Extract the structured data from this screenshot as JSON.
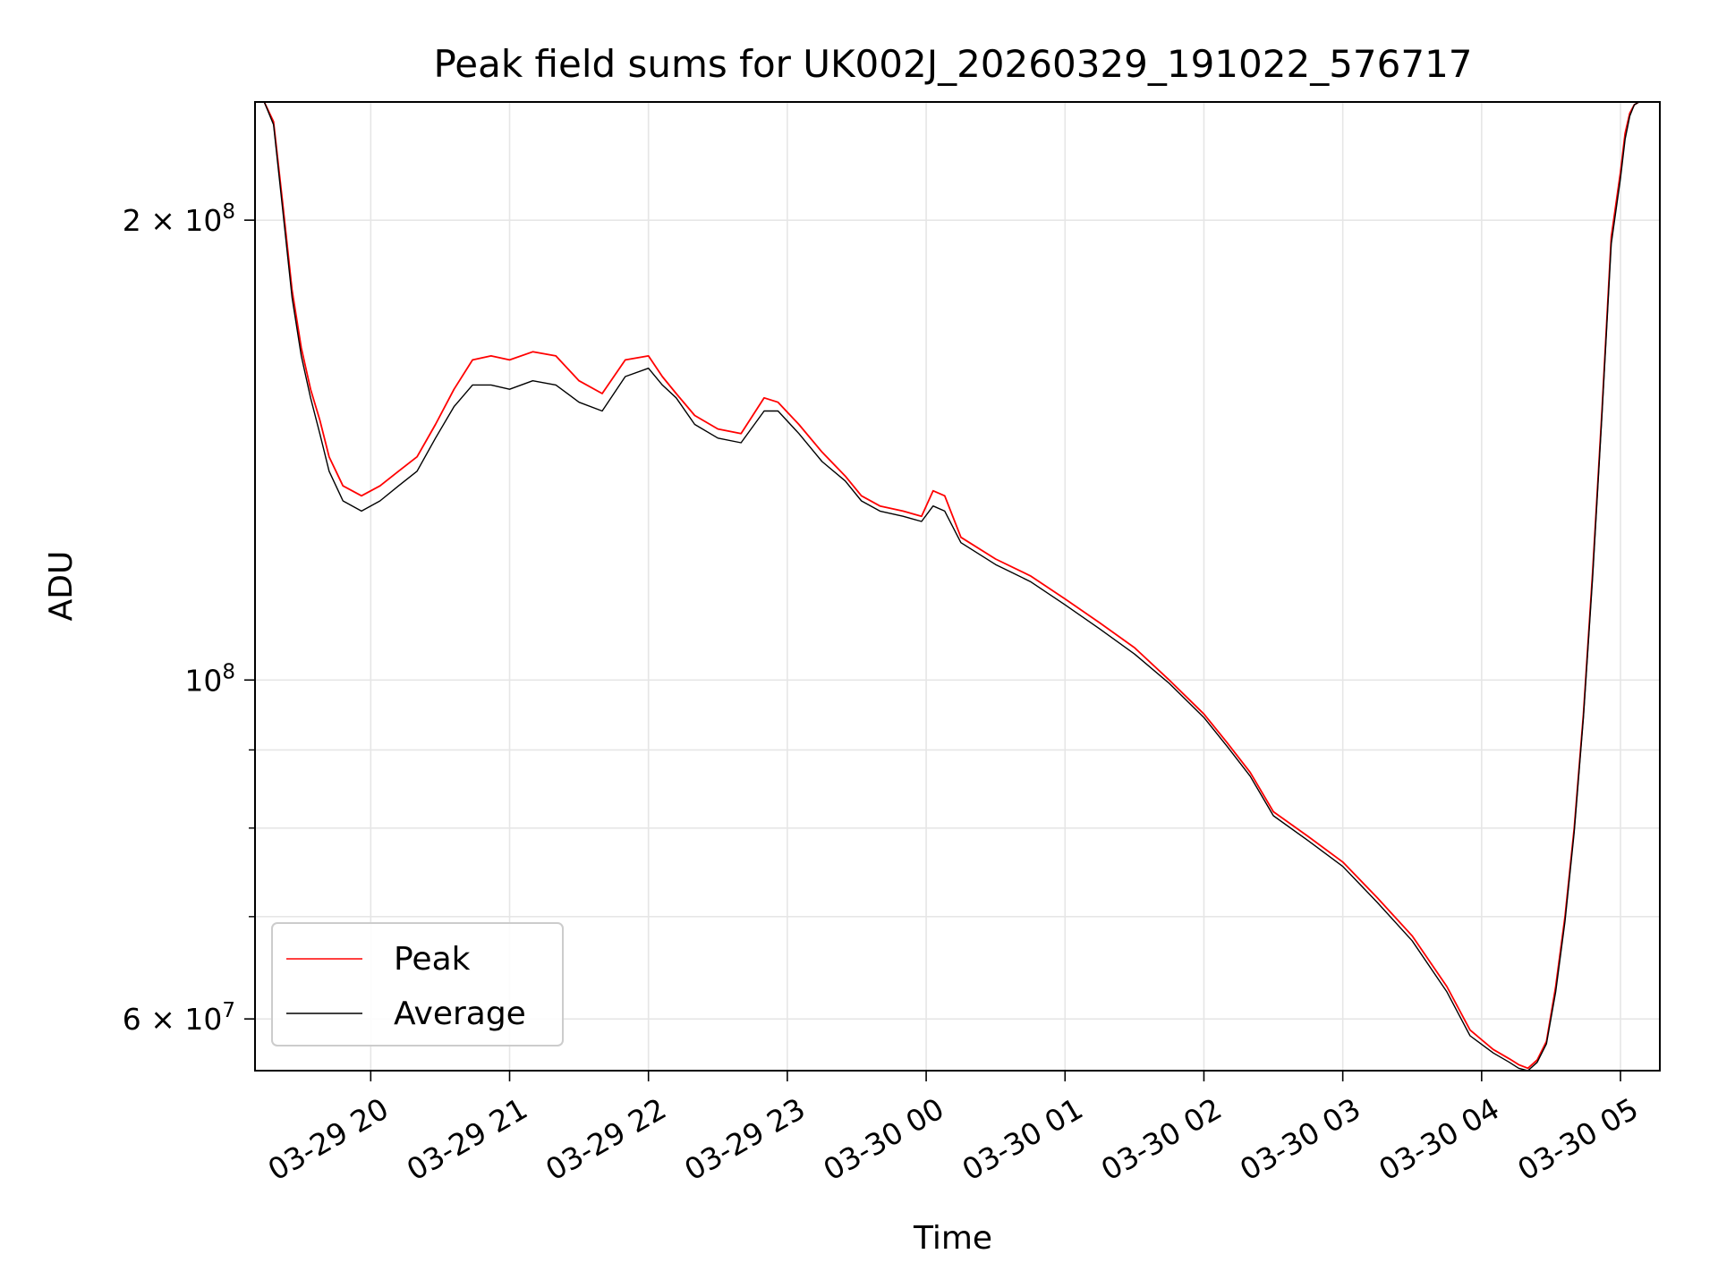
{
  "chart_data": {
    "type": "line",
    "title": "Peak field sums for UK002J_20260329_191022_576717",
    "xlabel": "Time",
    "ylabel": "ADU",
    "yscale": "log",
    "grid": true,
    "legend_position": "lower-left",
    "xlim": [
      "2026-03-29 19:10",
      "2026-03-30 05:17"
    ],
    "ylim": [
      55500000,
      239000000
    ],
    "x_ticks": [
      {
        "value": "2026-03-29 20:00",
        "label": "03-29 20"
      },
      {
        "value": "2026-03-29 21:00",
        "label": "03-29 21"
      },
      {
        "value": "2026-03-29 22:00",
        "label": "03-29 22"
      },
      {
        "value": "2026-03-29 23:00",
        "label": "03-29 23"
      },
      {
        "value": "2026-03-30 00:00",
        "label": "03-30 00"
      },
      {
        "value": "2026-03-30 01:00",
        "label": "03-30 01"
      },
      {
        "value": "2026-03-30 02:00",
        "label": "03-30 02"
      },
      {
        "value": "2026-03-30 03:00",
        "label": "03-30 03"
      },
      {
        "value": "2026-03-30 04:00",
        "label": "03-30 04"
      },
      {
        "value": "2026-03-30 05:00",
        "label": "03-30 05"
      }
    ],
    "y_major_ticks": [
      {
        "value": 60000000,
        "base": "6 × 10",
        "exp": "7"
      },
      {
        "value": 100000000,
        "base": "10",
        "exp": "8"
      },
      {
        "value": 200000000,
        "base": "2 × 10",
        "exp": "8"
      }
    ],
    "y_minor_ticks": [
      70000000,
      80000000,
      90000000
    ],
    "series": [
      {
        "name": "Peak",
        "color": "#ff0000",
        "x": [
          "2026-03-29 19:10",
          "2026-03-29 19:14",
          "2026-03-29 19:18",
          "2026-03-29 19:22",
          "2026-03-29 19:26",
          "2026-03-29 19:30",
          "2026-03-29 19:34",
          "2026-03-29 19:38",
          "2026-03-29 19:42",
          "2026-03-29 19:48",
          "2026-03-29 19:56",
          "2026-03-29 20:04",
          "2026-03-29 20:12",
          "2026-03-29 20:20",
          "2026-03-29 20:28",
          "2026-03-29 20:36",
          "2026-03-29 20:44",
          "2026-03-29 20:52",
          "2026-03-29 21:00",
          "2026-03-29 21:10",
          "2026-03-29 21:20",
          "2026-03-29 21:30",
          "2026-03-29 21:40",
          "2026-03-29 21:50",
          "2026-03-29 22:00",
          "2026-03-29 22:06",
          "2026-03-29 22:12",
          "2026-03-29 22:20",
          "2026-03-29 22:30",
          "2026-03-29 22:40",
          "2026-03-29 22:50",
          "2026-03-29 22:56",
          "2026-03-29 23:05",
          "2026-03-29 23:15",
          "2026-03-29 23:25",
          "2026-03-29 23:32",
          "2026-03-29 23:40",
          "2026-03-29 23:50",
          "2026-03-29 23:58",
          "2026-03-30 00:03",
          "2026-03-30 00:08",
          "2026-03-30 00:15",
          "2026-03-30 00:30",
          "2026-03-30 00:45",
          "2026-03-30 01:00",
          "2026-03-30 01:15",
          "2026-03-30 01:30",
          "2026-03-30 01:45",
          "2026-03-30 02:00",
          "2026-03-30 02:10",
          "2026-03-30 02:20",
          "2026-03-30 02:30",
          "2026-03-30 02:45",
          "2026-03-30 03:00",
          "2026-03-30 03:15",
          "2026-03-30 03:30",
          "2026-03-30 03:45",
          "2026-03-30 03:55",
          "2026-03-30 04:05",
          "2026-03-30 04:12",
          "2026-03-30 04:16",
          "2026-03-30 04:20",
          "2026-03-30 04:24",
          "2026-03-30 04:28",
          "2026-03-30 04:32",
          "2026-03-30 04:36",
          "2026-03-30 04:40",
          "2026-03-30 04:44",
          "2026-03-30 04:48",
          "2026-03-30 04:52",
          "2026-03-30 04:56",
          "2026-03-30 05:00",
          "2026-03-30 05:02",
          "2026-03-30 05:04",
          "2026-03-30 05:06",
          "2026-03-30 05:08",
          "2026-03-30 05:10",
          "2026-03-30 05:17"
        ],
        "y": [
          239000000,
          239000000,
          232000000,
          205000000,
          180000000,
          165000000,
          155000000,
          148000000,
          140000000,
          134000000,
          132000000,
          134000000,
          137000000,
          140000000,
          147000000,
          155000000,
          162000000,
          163000000,
          162000000,
          164000000,
          163000000,
          157000000,
          154000000,
          162000000,
          163000000,
          158000000,
          154000000,
          149000000,
          146000000,
          145000000,
          153000000,
          152000000,
          147000000,
          141000000,
          136000000,
          132000000,
          130000000,
          129000000,
          128000000,
          133000000,
          132000000,
          124000000,
          120000000,
          117000000,
          113000000,
          109000000,
          105000000,
          100000000,
          95000000,
          91000000,
          87000000,
          82000000,
          79000000,
          76000000,
          72000000,
          68000000,
          63000000,
          59000000,
          57300000,
          56500000,
          56000000,
          55700000,
          56400000,
          58000000,
          63000000,
          70000000,
          80000000,
          95000000,
          118000000,
          150000000,
          195000000,
          215000000,
          228000000,
          235000000,
          238000000,
          239000000,
          239000000,
          239000000
        ]
      },
      {
        "name": "Average",
        "color": "#000000",
        "x": [
          "2026-03-29 19:10",
          "2026-03-29 19:14",
          "2026-03-29 19:18",
          "2026-03-29 19:22",
          "2026-03-29 19:26",
          "2026-03-29 19:30",
          "2026-03-29 19:34",
          "2026-03-29 19:38",
          "2026-03-29 19:42",
          "2026-03-29 19:48",
          "2026-03-29 19:56",
          "2026-03-29 20:04",
          "2026-03-29 20:12",
          "2026-03-29 20:20",
          "2026-03-29 20:28",
          "2026-03-29 20:36",
          "2026-03-29 20:44",
          "2026-03-29 20:52",
          "2026-03-29 21:00",
          "2026-03-29 21:10",
          "2026-03-29 21:20",
          "2026-03-29 21:30",
          "2026-03-29 21:40",
          "2026-03-29 21:50",
          "2026-03-29 22:00",
          "2026-03-29 22:06",
          "2026-03-29 22:12",
          "2026-03-29 22:20",
          "2026-03-29 22:30",
          "2026-03-29 22:40",
          "2026-03-29 22:50",
          "2026-03-29 22:56",
          "2026-03-29 23:05",
          "2026-03-29 23:15",
          "2026-03-29 23:25",
          "2026-03-29 23:32",
          "2026-03-29 23:40",
          "2026-03-29 23:50",
          "2026-03-29 23:58",
          "2026-03-30 00:03",
          "2026-03-30 00:08",
          "2026-03-30 00:15",
          "2026-03-30 00:30",
          "2026-03-30 00:45",
          "2026-03-30 01:00",
          "2026-03-30 01:15",
          "2026-03-30 01:30",
          "2026-03-30 01:45",
          "2026-03-30 02:00",
          "2026-03-30 02:10",
          "2026-03-30 02:20",
          "2026-03-30 02:30",
          "2026-03-30 02:45",
          "2026-03-30 03:00",
          "2026-03-30 03:15",
          "2026-03-30 03:30",
          "2026-03-30 03:45",
          "2026-03-30 03:55",
          "2026-03-30 04:05",
          "2026-03-30 04:12",
          "2026-03-30 04:16",
          "2026-03-30 04:20",
          "2026-03-30 04:24",
          "2026-03-30 04:28",
          "2026-03-30 04:32",
          "2026-03-30 04:36",
          "2026-03-30 04:40",
          "2026-03-30 04:44",
          "2026-03-30 04:48",
          "2026-03-30 04:52",
          "2026-03-30 04:56",
          "2026-03-30 05:00",
          "2026-03-30 05:02",
          "2026-03-30 05:04",
          "2026-03-30 05:06",
          "2026-03-30 05:08",
          "2026-03-30 05:10",
          "2026-03-30 05:17"
        ],
        "y": [
          239000000,
          239000000,
          231000000,
          203000000,
          178000000,
          163000000,
          153000000,
          145000000,
          137000000,
          131000000,
          129000000,
          131000000,
          134000000,
          137000000,
          144000000,
          151000000,
          156000000,
          156000000,
          155000000,
          157000000,
          156000000,
          152000000,
          150000000,
          158000000,
          160000000,
          156000000,
          153000000,
          147000000,
          144000000,
          143000000,
          150000000,
          150000000,
          145000000,
          139000000,
          135000000,
          131000000,
          129000000,
          128000000,
          127000000,
          130000000,
          129000000,
          123000000,
          119000000,
          116000000,
          112000000,
          108000000,
          104000000,
          99500000,
          94500000,
          90500000,
          86500000,
          81500000,
          78500000,
          75500000,
          71500000,
          67500000,
          62500000,
          58500000,
          57000000,
          56200000,
          55700000,
          55500000,
          56200000,
          57800000,
          62500000,
          69500000,
          79500000,
          94500000,
          117000000,
          149000000,
          193000000,
          213000000,
          226000000,
          234000000,
          238000000,
          239000000,
          239000000,
          239000000
        ]
      }
    ]
  }
}
